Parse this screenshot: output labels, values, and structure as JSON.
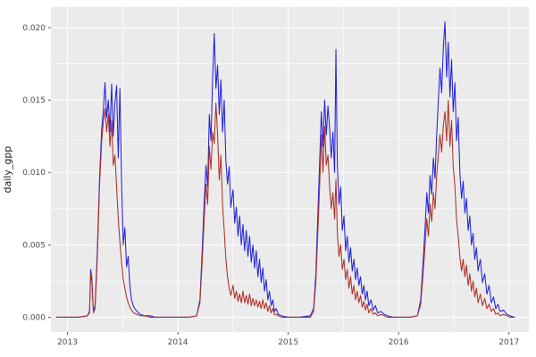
{
  "chart_data": {
    "type": "line",
    "title": "",
    "xlabel": "",
    "ylabel": "daily_gpp",
    "legend": "none",
    "grid": true,
    "panel_bg": "#EBEBEB",
    "grid_color": "#FFFFFF",
    "tick_color": "#333333",
    "xlim": [
      2012.85,
      2017.18
    ],
    "ylim": [
      -0.00102,
      0.02142
    ],
    "x_ticks": [
      2013,
      2014,
      2015,
      2016,
      2017
    ],
    "x_tick_labels": [
      "2013",
      "2014",
      "2015",
      "2016",
      "2017"
    ],
    "x_minor_ticks": [
      2013.5,
      2014.5,
      2015.5,
      2016.5
    ],
    "y_ticks": [
      0.0,
      0.005,
      0.01,
      0.015,
      0.02
    ],
    "y_tick_labels": [
      "0.000",
      "0.005",
      "0.010",
      "0.015",
      "0.020"
    ],
    "y_minor_ticks": [
      0.0025,
      0.0075,
      0.0125,
      0.0175
    ],
    "series": [
      {
        "name": "blue",
        "color": "#2222DD",
        "column": 1
      },
      {
        "name": "red",
        "color": "#B03028",
        "column": 2
      }
    ],
    "columns": [
      "year_decimal",
      "daily_gpp_blue",
      "daily_gpp_red"
    ],
    "points": [
      [
        2012.9,
        0,
        0
      ],
      [
        2013.0,
        0,
        0
      ],
      [
        2013.1,
        0,
        0
      ],
      [
        2013.18,
        0.0001,
        0.0001
      ],
      [
        2013.2,
        0.0004,
        0.0003
      ],
      [
        2013.21,
        0.0033,
        0.003
      ],
      [
        2013.22,
        0.0028,
        0.0025
      ],
      [
        2013.235,
        0.0004,
        0.0003
      ],
      [
        2013.25,
        0.0008,
        0.0006
      ],
      [
        2013.27,
        0.0045,
        0.004
      ],
      [
        2013.29,
        0.0095,
        0.009
      ],
      [
        2013.31,
        0.013,
        0.0122
      ],
      [
        2013.325,
        0.0143,
        0.0135
      ],
      [
        2013.34,
        0.0162,
        0.0144
      ],
      [
        2013.355,
        0.0138,
        0.0128
      ],
      [
        2013.37,
        0.015,
        0.014
      ],
      [
        2013.385,
        0.0128,
        0.0118
      ],
      [
        2013.4,
        0.0161,
        0.0136
      ],
      [
        2013.415,
        0.0125,
        0.0105
      ],
      [
        2013.43,
        0.0148,
        0.0112
      ],
      [
        2013.445,
        0.016,
        0.009
      ],
      [
        2013.46,
        0.011,
        0.0068
      ],
      [
        2013.475,
        0.0158,
        0.0052
      ],
      [
        2013.49,
        0.0095,
        0.0038
      ],
      [
        2013.505,
        0.005,
        0.0026
      ],
      [
        2013.52,
        0.0062,
        0.002
      ],
      [
        2013.535,
        0.0035,
        0.0014
      ],
      [
        2013.55,
        0.0042,
        0.001
      ],
      [
        2013.565,
        0.0022,
        0.0007
      ],
      [
        2013.58,
        0.0012,
        0.0005
      ],
      [
        2013.6,
        0.0007,
        0.0003
      ],
      [
        2013.63,
        0.0004,
        0.0002
      ],
      [
        2013.66,
        0.0002,
        0.0001
      ],
      [
        2013.7,
        0.0001,
        0.0001
      ],
      [
        2013.75,
        0.0001,
        0
      ],
      [
        2013.8,
        0,
        0
      ],
      [
        2013.9,
        0,
        0
      ],
      [
        2014.0,
        0,
        0
      ],
      [
        2014.1,
        0,
        0
      ],
      [
        2014.17,
        0.0001,
        0.0001
      ],
      [
        2014.2,
        0.0012,
        0.001
      ],
      [
        2014.22,
        0.0045,
        0.0038
      ],
      [
        2014.24,
        0.0082,
        0.007
      ],
      [
        2014.255,
        0.0105,
        0.0092
      ],
      [
        2014.27,
        0.009,
        0.0078
      ],
      [
        2014.285,
        0.014,
        0.0118
      ],
      [
        2014.3,
        0.0122,
        0.0102
      ],
      [
        2014.315,
        0.0165,
        0.0128
      ],
      [
        2014.33,
        0.0196,
        0.012
      ],
      [
        2014.345,
        0.0158,
        0.0148
      ],
      [
        2014.36,
        0.0174,
        0.0126
      ],
      [
        2014.375,
        0.014,
        0.0095
      ],
      [
        2014.39,
        0.0164,
        0.0112
      ],
      [
        2014.405,
        0.0128,
        0.0078
      ],
      [
        2014.42,
        0.015,
        0.006
      ],
      [
        2014.435,
        0.0108,
        0.004
      ],
      [
        2014.45,
        0.0092,
        0.0028
      ],
      [
        2014.465,
        0.0104,
        0.002
      ],
      [
        2014.48,
        0.0076,
        0.0015
      ],
      [
        2014.5,
        0.0088,
        0.0022
      ],
      [
        2014.515,
        0.0065,
        0.0013
      ],
      [
        2014.53,
        0.0076,
        0.0018
      ],
      [
        2014.545,
        0.0056,
        0.0011
      ],
      [
        2014.56,
        0.007,
        0.0016
      ],
      [
        2014.575,
        0.005,
        0.001
      ],
      [
        2014.59,
        0.0064,
        0.0018
      ],
      [
        2014.605,
        0.0046,
        0.001
      ],
      [
        2014.62,
        0.006,
        0.0015
      ],
      [
        2014.635,
        0.0042,
        0.0009
      ],
      [
        2014.65,
        0.0056,
        0.0016
      ],
      [
        2014.665,
        0.0038,
        0.0008
      ],
      [
        2014.68,
        0.005,
        0.0013
      ],
      [
        2014.695,
        0.0034,
        0.0008
      ],
      [
        2014.71,
        0.0046,
        0.0012
      ],
      [
        2014.725,
        0.0028,
        0.0007
      ],
      [
        2014.74,
        0.004,
        0.0011
      ],
      [
        2014.755,
        0.0024,
        0.0006
      ],
      [
        2014.77,
        0.0034,
        0.0012
      ],
      [
        2014.785,
        0.0018,
        0.0006
      ],
      [
        2014.8,
        0.0026,
        0.001
      ],
      [
        2014.815,
        0.0012,
        0.0004
      ],
      [
        2014.83,
        0.0018,
        0.0008
      ],
      [
        2014.845,
        0.0008,
        0.0003
      ],
      [
        2014.86,
        0.0012,
        0.0006
      ],
      [
        2014.875,
        0.0004,
        0.0002
      ],
      [
        2014.89,
        0.0006,
        0.0002
      ],
      [
        2014.91,
        0.0002,
        0.0001
      ],
      [
        2014.94,
        0.0001,
        0
      ],
      [
        2015.0,
        0,
        0
      ],
      [
        2015.1,
        0,
        0
      ],
      [
        2015.2,
        0.0001,
        0
      ],
      [
        2015.23,
        0.0006,
        0.0004
      ],
      [
        2015.25,
        0.003,
        0.0024
      ],
      [
        2015.27,
        0.0075,
        0.0062
      ],
      [
        2015.285,
        0.0108,
        0.0092
      ],
      [
        2015.3,
        0.0142,
        0.0126
      ],
      [
        2015.315,
        0.0118,
        0.01
      ],
      [
        2015.33,
        0.015,
        0.0132
      ],
      [
        2015.345,
        0.0126,
        0.0105
      ],
      [
        2015.36,
        0.0146,
        0.0112
      ],
      [
        2015.375,
        0.013,
        0.009
      ],
      [
        2015.39,
        0.011,
        0.0075
      ],
      [
        2015.405,
        0.0128,
        0.0086
      ],
      [
        2015.42,
        0.01,
        0.0068
      ],
      [
        2015.432,
        0.0185,
        0.0095
      ],
      [
        2015.445,
        0.0105,
        0.0058
      ],
      [
        2015.46,
        0.0078,
        0.0042
      ],
      [
        2015.475,
        0.009,
        0.005
      ],
      [
        2015.49,
        0.006,
        0.0033
      ],
      [
        2015.505,
        0.007,
        0.004
      ],
      [
        2015.52,
        0.0046,
        0.0026
      ],
      [
        2015.535,
        0.0056,
        0.0033
      ],
      [
        2015.55,
        0.0038,
        0.002
      ],
      [
        2015.565,
        0.0048,
        0.0028
      ],
      [
        2015.58,
        0.0032,
        0.0016
      ],
      [
        2015.595,
        0.004,
        0.0022
      ],
      [
        2015.61,
        0.0026,
        0.0012
      ],
      [
        2015.625,
        0.0034,
        0.0018
      ],
      [
        2015.64,
        0.0022,
        0.001
      ],
      [
        2015.655,
        0.0028,
        0.0015
      ],
      [
        2015.67,
        0.0016,
        0.0007
      ],
      [
        2015.685,
        0.0022,
        0.0011
      ],
      [
        2015.7,
        0.0012,
        0.0005
      ],
      [
        2015.715,
        0.0018,
        0.0009
      ],
      [
        2015.73,
        0.0008,
        0.0003
      ],
      [
        2015.75,
        0.0012,
        0.0006
      ],
      [
        2015.77,
        0.0005,
        0.0002
      ],
      [
        2015.79,
        0.0008,
        0.0003
      ],
      [
        2015.81,
        0.0003,
        0.0001
      ],
      [
        2015.84,
        0.0004,
        0.0002
      ],
      [
        2015.87,
        0.0002,
        0.0001
      ],
      [
        2015.9,
        0.0001,
        0
      ],
      [
        2015.95,
        0,
        0
      ],
      [
        2016.0,
        0,
        0
      ],
      [
        2016.1,
        0,
        0
      ],
      [
        2016.17,
        0.0001,
        0.0001
      ],
      [
        2016.2,
        0.0012,
        0.0009
      ],
      [
        2016.22,
        0.0036,
        0.0028
      ],
      [
        2016.24,
        0.0062,
        0.005
      ],
      [
        2016.255,
        0.0086,
        0.0068
      ],
      [
        2016.27,
        0.0072,
        0.0056
      ],
      [
        2016.285,
        0.0098,
        0.0078
      ],
      [
        2016.3,
        0.0085,
        0.0066
      ],
      [
        2016.315,
        0.011,
        0.0086
      ],
      [
        2016.33,
        0.0096,
        0.0075
      ],
      [
        2016.345,
        0.0126,
        0.0098
      ],
      [
        2016.36,
        0.015,
        0.0112
      ],
      [
        2016.375,
        0.0172,
        0.0126
      ],
      [
        2016.39,
        0.0155,
        0.0114
      ],
      [
        2016.405,
        0.0186,
        0.0132
      ],
      [
        2016.42,
        0.0204,
        0.0142
      ],
      [
        2016.435,
        0.0166,
        0.0122
      ],
      [
        2016.45,
        0.019,
        0.015
      ],
      [
        2016.465,
        0.0152,
        0.0118
      ],
      [
        2016.48,
        0.0178,
        0.0136
      ],
      [
        2016.495,
        0.0142,
        0.0104
      ],
      [
        2016.51,
        0.0162,
        0.009
      ],
      [
        2016.525,
        0.0122,
        0.0068
      ],
      [
        2016.54,
        0.0138,
        0.0056
      ],
      [
        2016.555,
        0.01,
        0.0042
      ],
      [
        2016.57,
        0.0082,
        0.0032
      ],
      [
        2016.585,
        0.0094,
        0.004
      ],
      [
        2016.6,
        0.0072,
        0.0028
      ],
      [
        2016.615,
        0.0082,
        0.0036
      ],
      [
        2016.63,
        0.006,
        0.0022
      ],
      [
        2016.645,
        0.007,
        0.003
      ],
      [
        2016.66,
        0.005,
        0.0018
      ],
      [
        2016.675,
        0.0058,
        0.0025
      ],
      [
        2016.69,
        0.004,
        0.0014
      ],
      [
        2016.705,
        0.0048,
        0.002
      ],
      [
        2016.72,
        0.0032,
        0.001
      ],
      [
        2016.74,
        0.004,
        0.0016
      ],
      [
        2016.76,
        0.0024,
        0.0008
      ],
      [
        2016.78,
        0.003,
        0.0013
      ],
      [
        2016.8,
        0.0016,
        0.0006
      ],
      [
        2016.82,
        0.0022,
        0.0009
      ],
      [
        2016.84,
        0.001,
        0.0004
      ],
      [
        2016.86,
        0.0014,
        0.0006
      ],
      [
        2016.88,
        0.0006,
        0.0002
      ],
      [
        2016.9,
        0.0009,
        0.0003
      ],
      [
        2016.92,
        0.0004,
        0.0001
      ],
      [
        2016.95,
        0.0005,
        0.0002
      ],
      [
        2016.98,
        0.0002,
        0.0001
      ],
      [
        2017.01,
        0.0001,
        0
      ],
      [
        2017.05,
        0,
        0
      ]
    ]
  }
}
